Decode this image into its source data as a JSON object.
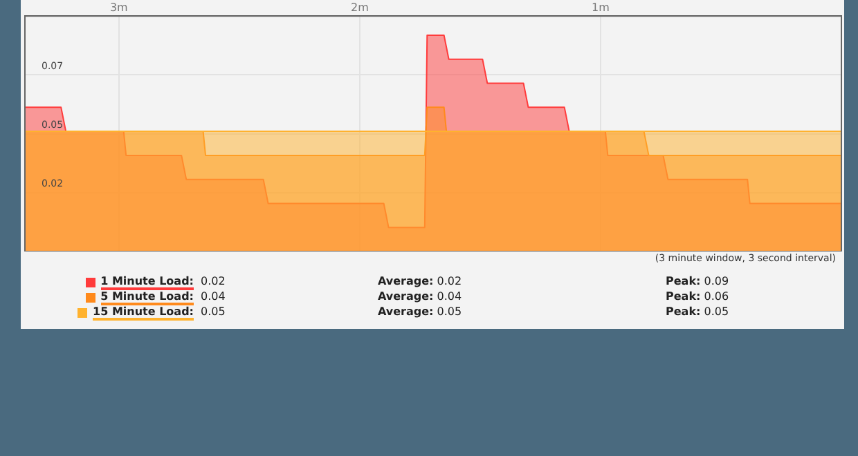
{
  "chart_data": {
    "type": "area",
    "xlim": [
      3.39,
      0
    ],
    "xticks": [
      {
        "value": 3,
        "label": "3m"
      },
      {
        "value": 2,
        "label": "2m"
      },
      {
        "value": 1,
        "label": "1m"
      }
    ],
    "ylim": [
      0,
      0.098
    ],
    "yticks": [
      {
        "value": 0.0245,
        "label": "0.02"
      },
      {
        "value": 0.049,
        "label": "0.05"
      },
      {
        "value": 0.0735,
        "label": "0.07"
      }
    ],
    "grid": true,
    "legend": "bottom",
    "marker": "none",
    "series": [
      {
        "name": "15 Minute Load:",
        "color": "#ffb22e",
        "x": [
          3.39,
          0
        ],
        "values": [
          0.05,
          0.05
        ]
      },
      {
        "name": "5 Minute Load:",
        "color": "#ff8a1c",
        "x": [
          3.39,
          2.65,
          2.64,
          1.73,
          1.72,
          1.65,
          1.64,
          0.82,
          0.8,
          0
        ],
        "values": [
          0.05,
          0.05,
          0.04,
          0.04,
          0.06,
          0.06,
          0.05,
          0.05,
          0.04,
          0.04
        ]
      },
      {
        "name": "1 Minute Load:",
        "color": "#ff3b3b",
        "x": [
          3.39,
          3.24,
          3.22,
          2.98,
          2.97,
          2.74,
          2.72,
          2.4,
          2.38,
          1.9,
          1.88,
          1.73,
          1.72,
          1.65,
          1.63,
          1.49,
          1.47,
          1.32,
          1.3,
          1.15,
          1.13,
          0.98,
          0.97,
          0.74,
          0.72,
          0.39,
          0.38,
          0
        ],
        "values": [
          0.06,
          0.06,
          0.05,
          0.05,
          0.04,
          0.04,
          0.03,
          0.03,
          0.02,
          0.02,
          0.01,
          0.01,
          0.09,
          0.09,
          0.08,
          0.08,
          0.07,
          0.07,
          0.06,
          0.06,
          0.05,
          0.05,
          0.04,
          0.04,
          0.03,
          0.03,
          0.02,
          0.02
        ]
      }
    ],
    "annotations": [
      "(3 minute window, 3 second interval)",
      "0.05",
      "Average: 0.05",
      "Peak: 0.05",
      "0.04",
      "Average: 0.04",
      "Peak: 0.06",
      "0.02",
      "Average: 0.02",
      "Peak: 0.09"
    ]
  }
}
